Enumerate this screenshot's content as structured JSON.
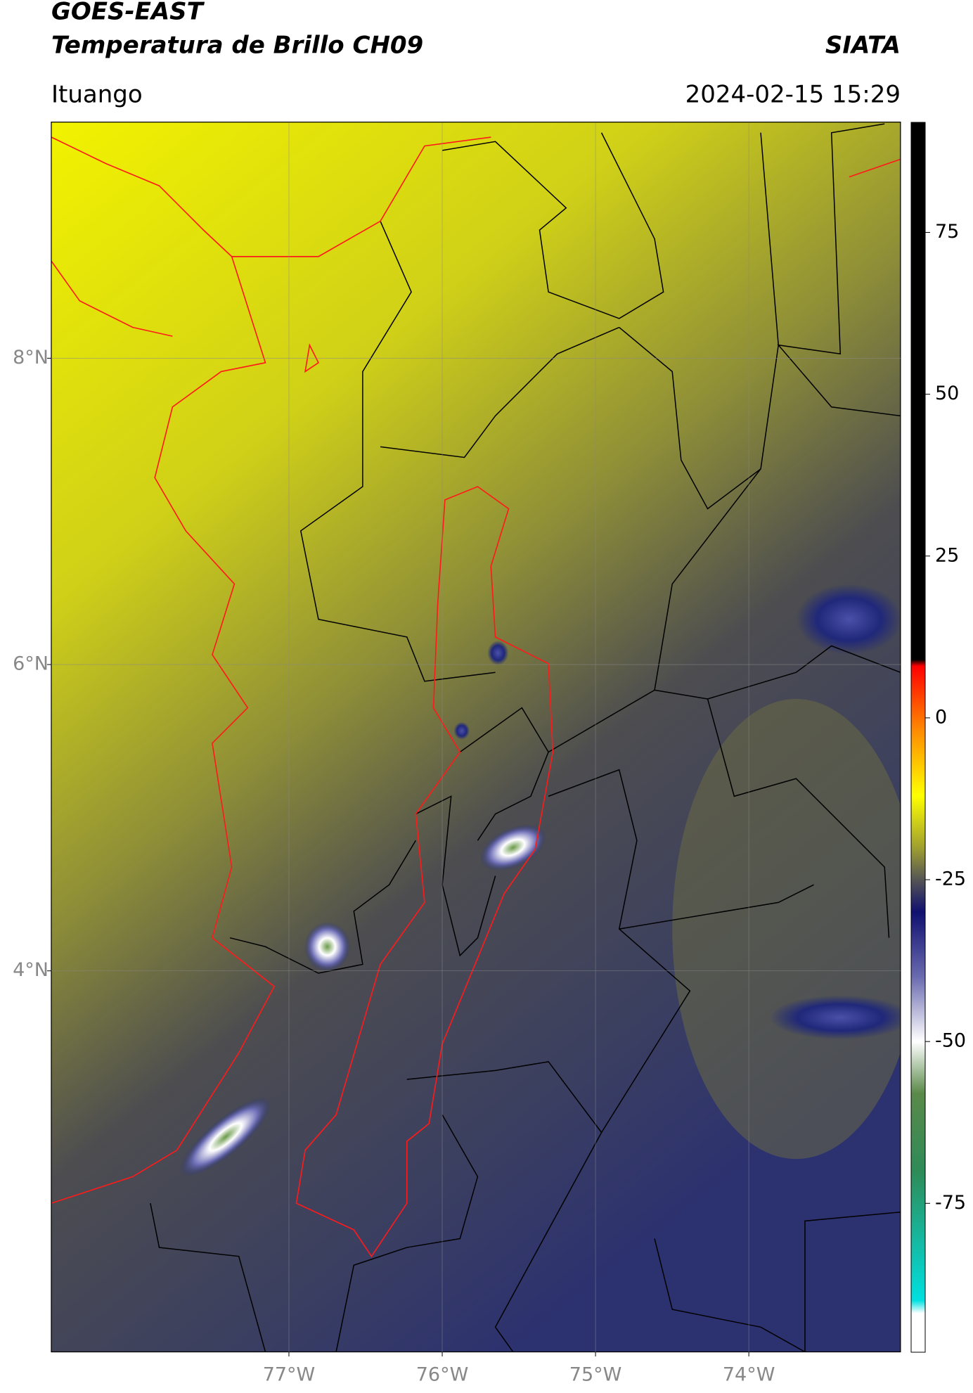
{
  "chart_data": {
    "type": "map",
    "title": "GOES-EAST",
    "subtitle": "Temperatura de Brillo CH09",
    "source": "SIATA",
    "location": "Ituango",
    "timestamp": "2024-02-15 15:29",
    "xlim": [
      -78.55,
      -73.01
    ],
    "ylim": [
      1.51,
      9.54
    ],
    "xticks": [
      {
        "value": -77,
        "label": "77°W"
      },
      {
        "value": -76,
        "label": "76°W"
      },
      {
        "value": -75,
        "label": "75°W"
      },
      {
        "value": -74,
        "label": "74°W"
      }
    ],
    "yticks": [
      {
        "value": 8,
        "label": "8°N"
      },
      {
        "value": 6,
        "label": "6°N"
      },
      {
        "value": 4,
        "label": "4°N"
      }
    ],
    "grid": true,
    "colorbar": {
      "clim": [
        -98,
        92
      ],
      "ticks": [
        75,
        50,
        25,
        0,
        -25,
        -50,
        -75
      ],
      "colormap": [
        {
          "value": 92,
          "color": "#000000"
        },
        {
          "value": 9,
          "color": "#000000"
        },
        {
          "value": 8,
          "color": "#ff0000"
        },
        {
          "value": -2,
          "color": "#ff8c00"
        },
        {
          "value": -12,
          "color": "#ffff00"
        },
        {
          "value": -20,
          "color": "#a0a030"
        },
        {
          "value": -25,
          "color": "#555555"
        },
        {
          "value": -30,
          "color": "#101070"
        },
        {
          "value": -40,
          "color": "#6a6ab0"
        },
        {
          "value": -50,
          "color": "#ffffff"
        },
        {
          "value": -58,
          "color": "#5a8a4a"
        },
        {
          "value": -70,
          "color": "#2e8b57"
        },
        {
          "value": -90,
          "color": "#00e0e0"
        },
        {
          "value": -92,
          "color": "#ffffff"
        },
        {
          "value": -98,
          "color": "#ffffff"
        }
      ]
    }
  }
}
